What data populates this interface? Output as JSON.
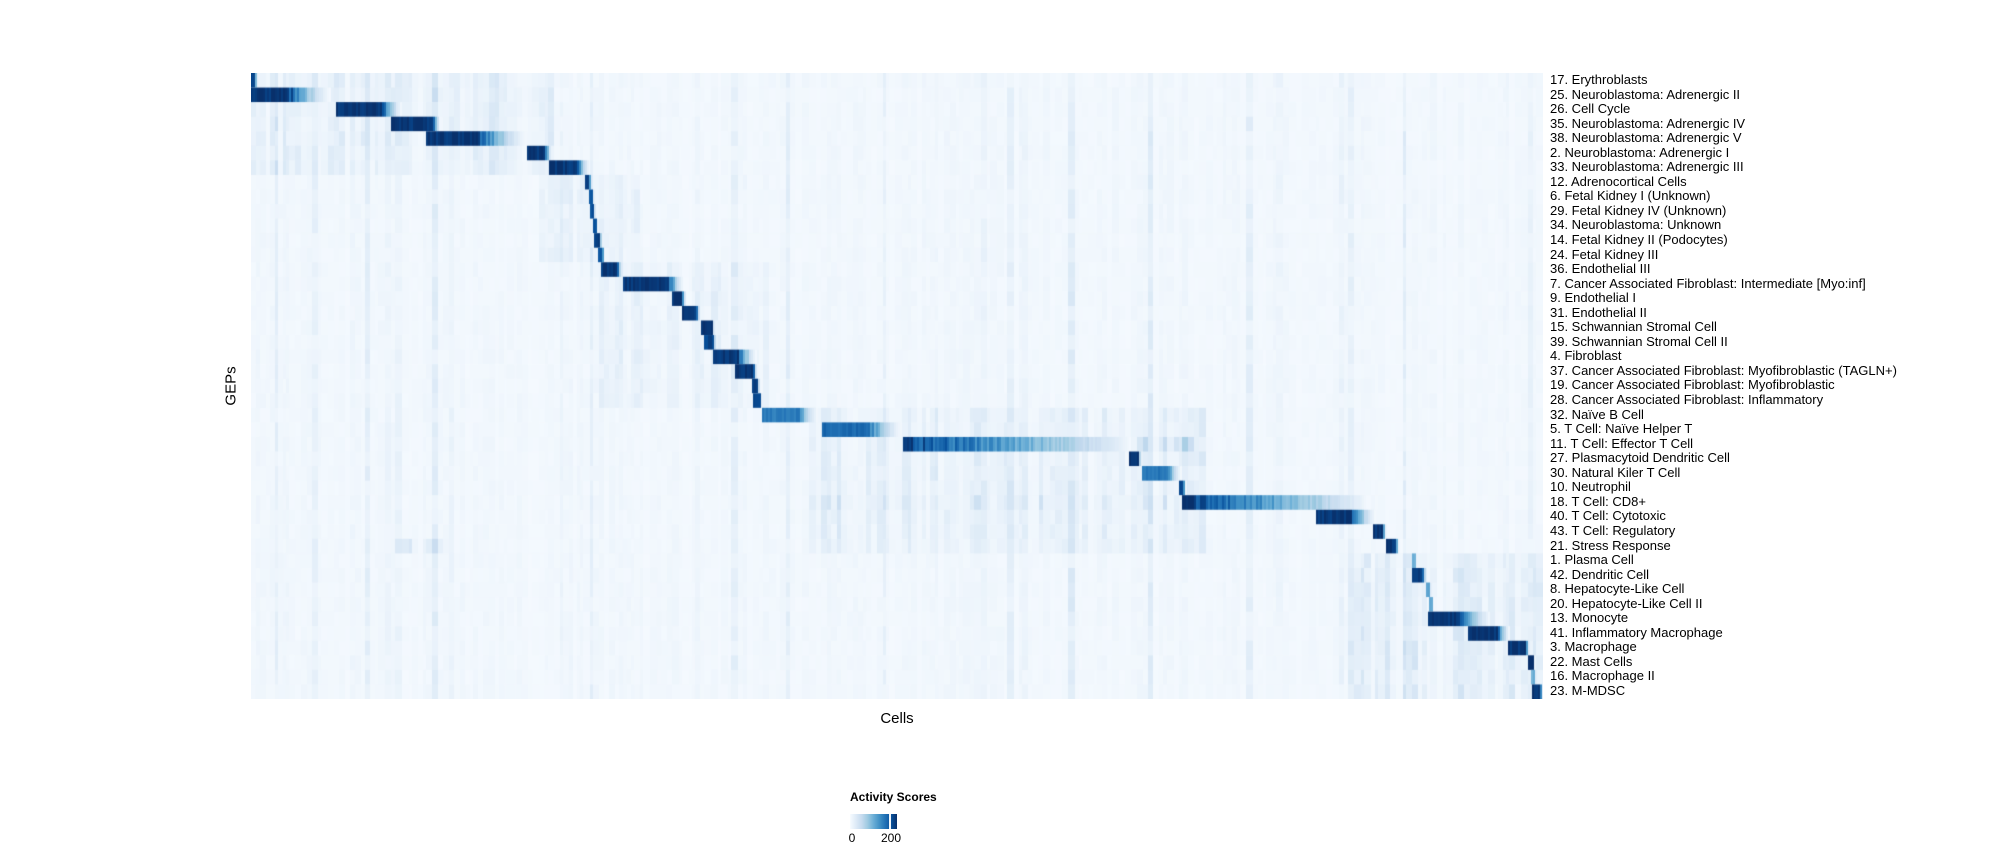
{
  "page": {
    "background": "#ffffff"
  },
  "chart_data": {
    "type": "heatmap",
    "title": "",
    "xlabel": "Cells",
    "ylabel": "GEPs",
    "n_rows": 43,
    "grid": false,
    "colormap": {
      "name": "Blues",
      "anchors": [
        "#f7fbff",
        "#deebf7",
        "#c6dbef",
        "#9ecae1",
        "#6baed6",
        "#4292c6",
        "#2171b5",
        "#08519c",
        "#08306b"
      ]
    },
    "legend": {
      "title": "Activity Scores",
      "position": "bottom-left",
      "ticks": [
        {
          "label": "0",
          "value": 0,
          "pos": 0.03
        },
        {
          "label": "200",
          "value": 200,
          "pos": 0.85
        }
      ],
      "range": [
        0,
        235
      ]
    },
    "rows": [
      {
        "label": "17. Erythroblasts",
        "block": [
          0.0,
          0.003,
          0.006
        ],
        "peak": 0.9,
        "soft": [
          [
            0.0,
            0.235,
            0.1
          ]
        ]
      },
      {
        "label": "25. Neuroblastoma: Adrenergic II",
        "block": [
          0.0,
          0.03,
          0.064
        ],
        "peak": 1.0,
        "soft": [
          [
            0.0,
            0.235,
            0.1
          ]
        ]
      },
      {
        "label": "26. Cell Cycle",
        "block": [
          0.066,
          0.102,
          0.118
        ],
        "peak": 1.0,
        "soft": [
          [
            0.0,
            0.235,
            0.1
          ]
        ]
      },
      {
        "label": "35. Neuroblastoma: Adrenergic IV",
        "block": [
          0.109,
          0.141,
          0.147
        ],
        "peak": 1.0,
        "soft": [
          [
            0.0,
            0.235,
            0.1
          ]
        ]
      },
      {
        "label": "38. Neuroblastoma: Adrenergic V",
        "block": [
          0.136,
          0.177,
          0.216
        ],
        "peak": 1.0,
        "soft": [
          [
            0.0,
            0.235,
            0.1
          ]
        ]
      },
      {
        "label": "2. Neuroblastoma: Adrenergic I",
        "block": [
          0.214,
          0.228,
          0.233
        ],
        "peak": 1.0,
        "soft": [
          [
            0.0,
            0.235,
            0.1
          ]
        ]
      },
      {
        "label": "33. Neuroblastoma: Adrenergic III",
        "block": [
          0.231,
          0.252,
          0.263
        ],
        "peak": 1.0,
        "soft": [
          [
            0.0,
            0.235,
            0.1
          ]
        ]
      },
      {
        "label": "12. Adrenocortical Cells",
        "block": [
          0.259,
          0.262,
          0.264
        ],
        "peak": 0.95,
        "soft": [
          [
            0.225,
            0.3,
            0.06
          ]
        ]
      },
      {
        "label": "6. Fetal Kidney I (Unknown)",
        "block": [
          0.262,
          0.264,
          0.266
        ],
        "peak": 0.9,
        "soft": [
          [
            0.225,
            0.3,
            0.06
          ]
        ]
      },
      {
        "label": "29. Fetal Kidney IV (Unknown)",
        "block": [
          0.263,
          0.265,
          0.267
        ],
        "peak": 0.9,
        "soft": [
          [
            0.225,
            0.3,
            0.06
          ]
        ]
      },
      {
        "label": "34. Neuroblastoma: Unknown",
        "block": [
          0.265,
          0.267,
          0.269
        ],
        "peak": 0.9,
        "soft": [
          [
            0.225,
            0.3,
            0.06
          ]
        ]
      },
      {
        "label": "14. Fetal Kidney II (Podocytes)",
        "block": [
          0.266,
          0.27,
          0.272
        ],
        "peak": 0.95,
        "soft": [
          [
            0.225,
            0.3,
            0.06
          ]
        ]
      },
      {
        "label": "24. Fetal Kidney III",
        "block": [
          0.269,
          0.272,
          0.274
        ],
        "peak": 0.9,
        "soft": [
          [
            0.225,
            0.3,
            0.06
          ]
        ]
      },
      {
        "label": "36. Endothelial III",
        "block": [
          0.271,
          0.284,
          0.287
        ],
        "peak": 1.0,
        "soft": [
          [
            0.27,
            0.4,
            0.07
          ]
        ]
      },
      {
        "label": "7. Cancer Associated Fibroblast: Intermediate [Myo:inf]",
        "block": [
          0.288,
          0.323,
          0.336
        ],
        "peak": 1.0,
        "soft": [
          [
            0.27,
            0.4,
            0.07
          ]
        ]
      },
      {
        "label": "9. Endothelial I",
        "block": [
          0.326,
          0.334,
          0.337
        ],
        "peak": 1.0,
        "soft": [
          [
            0.27,
            0.4,
            0.07
          ]
        ]
      },
      {
        "label": "31. Endothelial II",
        "block": [
          0.334,
          0.345,
          0.348
        ],
        "peak": 1.0,
        "soft": [
          [
            0.27,
            0.4,
            0.07
          ]
        ]
      },
      {
        "label": "15. Schwannian Stromal Cell",
        "block": [
          0.349,
          0.357,
          0.359
        ],
        "peak": 1.0,
        "soft": [
          [
            0.27,
            0.4,
            0.07
          ]
        ]
      },
      {
        "label": "39. Schwannian Stromal Cell II",
        "block": [
          0.351,
          0.358,
          0.36
        ],
        "peak": 0.95,
        "soft": [
          [
            0.27,
            0.4,
            0.07
          ]
        ]
      },
      {
        "label": "4. Fibroblast",
        "block": [
          0.358,
          0.378,
          0.392
        ],
        "peak": 1.0,
        "soft": [
          [
            0.27,
            0.4,
            0.07
          ]
        ]
      },
      {
        "label": "37. Cancer Associated Fibroblast: Myofibroblastic (TAGLN+)",
        "block": [
          0.375,
          0.389,
          0.392
        ],
        "peak": 1.0,
        "soft": [
          [
            0.27,
            0.4,
            0.07
          ]
        ]
      },
      {
        "label": "19. Cancer Associated Fibroblast: Myofibroblastic",
        "block": [
          0.388,
          0.392,
          0.394
        ],
        "peak": 1.0,
        "soft": [
          [
            0.27,
            0.4,
            0.07
          ]
        ]
      },
      {
        "label": "28. Cancer Associated Fibroblast: Inflammatory",
        "block": [
          0.389,
          0.394,
          0.396
        ],
        "peak": 0.95,
        "soft": [
          [
            0.27,
            0.4,
            0.07
          ]
        ]
      },
      {
        "label": "32. Naïve B Cell",
        "block": [
          0.396,
          0.425,
          0.44
        ],
        "peak": 0.72,
        "soft": [
          [
            0.43,
            0.74,
            0.09
          ]
        ]
      },
      {
        "label": "5. T Cell: Naïve Helper T",
        "block": [
          0.442,
          0.479,
          0.506
        ],
        "peak": 0.8,
        "soft": [
          [
            0.43,
            0.74,
            0.09
          ]
        ]
      },
      {
        "label": "11. T Cell: Effector T Cell",
        "block": [
          0.505,
          0.512,
          0.682
        ],
        "peak": 1.0,
        "fade_pow": 0.8,
        "soft": [
          [
            0.43,
            0.74,
            0.09
          ],
          [
            0.684,
            0.73,
            0.22
          ]
        ]
      },
      {
        "label": "27. Plasmacytoid Dendritic Cell",
        "block": [
          0.68,
          0.687,
          0.689
        ],
        "peak": 1.0,
        "soft": [
          [
            0.43,
            0.74,
            0.09
          ]
        ]
      },
      {
        "label": "30. Natural Kiler T Cell",
        "block": [
          0.69,
          0.71,
          0.721
        ],
        "peak": 0.75,
        "soft": [
          [
            0.43,
            0.74,
            0.09
          ]
        ]
      },
      {
        "label": "10. Neutrophil",
        "block": [
          0.719,
          0.722,
          0.724
        ],
        "peak": 0.9,
        "soft": [
          [
            0.43,
            0.74,
            0.09
          ]
        ]
      },
      {
        "label": "18. T Cell: CD8+",
        "block": [
          0.721,
          0.731,
          0.865
        ],
        "peak": 1.0,
        "fade_pow": 0.8,
        "soft": [
          [
            0.43,
            0.74,
            0.14
          ]
        ]
      },
      {
        "label": "40. T Cell: Cytotoxic",
        "block": [
          0.825,
          0.852,
          0.872
        ],
        "peak": 1.0,
        "soft": [
          [
            0.43,
            0.74,
            0.09
          ]
        ]
      },
      {
        "label": "43. T Cell: Regulatory",
        "block": [
          0.869,
          0.876,
          0.879
        ],
        "peak": 1.0,
        "soft": [
          [
            0.43,
            0.74,
            0.09
          ]
        ]
      },
      {
        "label": "21. Stress Response",
        "block": [
          0.879,
          0.886,
          0.889
        ],
        "peak": 1.0,
        "soft": [
          [
            0.43,
            0.74,
            0.09
          ],
          [
            0.112,
            0.149,
            0.18
          ]
        ]
      },
      {
        "label": "1. Plasma Cell",
        "block": [
          0.899,
          0.901,
          0.903
        ],
        "peak": 0.5,
        "soft": [
          [
            0.85,
            1.0,
            0.11
          ]
        ]
      },
      {
        "label": "42. Dendritic Cell",
        "block": [
          0.899,
          0.907,
          0.91
        ],
        "peak": 1.0,
        "soft": [
          [
            0.85,
            1.0,
            0.11
          ]
        ]
      },
      {
        "label": "8. Hepatocyte-Like Cell",
        "block": [
          0.91,
          0.912,
          0.914
        ],
        "peak": 0.55,
        "soft": [
          [
            0.85,
            1.0,
            0.11
          ]
        ]
      },
      {
        "label": "20. Hepatocyte-Like Cell II",
        "block": [
          0.912,
          0.914,
          0.916
        ],
        "peak": 0.55,
        "soft": [
          [
            0.85,
            1.0,
            0.11
          ]
        ]
      },
      {
        "label": "13. Monocyte",
        "block": [
          0.911,
          0.936,
          0.962
        ],
        "peak": 1.0,
        "soft": [
          [
            0.85,
            1.0,
            0.11
          ]
        ]
      },
      {
        "label": "41. Inflammatory Macrophage",
        "block": [
          0.942,
          0.965,
          0.975
        ],
        "peak": 1.0,
        "soft": [
          [
            0.85,
            1.0,
            0.11
          ]
        ]
      },
      {
        "label": "3. Macrophage",
        "block": [
          0.973,
          0.987,
          0.99
        ],
        "peak": 1.0,
        "soft": [
          [
            0.85,
            1.0,
            0.11
          ]
        ]
      },
      {
        "label": "22. Mast Cells",
        "block": [
          0.989,
          0.993,
          0.994
        ],
        "peak": 1.0,
        "soft": [
          [
            0.85,
            1.0,
            0.11
          ]
        ]
      },
      {
        "label": "16. Macrophage II",
        "block": [
          0.991,
          0.994,
          0.995
        ],
        "peak": 0.5,
        "soft": [
          [
            0.85,
            1.0,
            0.11
          ]
        ]
      },
      {
        "label": "23. M-MDSC",
        "block": [
          0.992,
          0.998,
          1.0
        ],
        "peak": 1.0,
        "soft": [
          [
            0.85,
            1.0,
            0.11
          ]
        ]
      }
    ]
  }
}
